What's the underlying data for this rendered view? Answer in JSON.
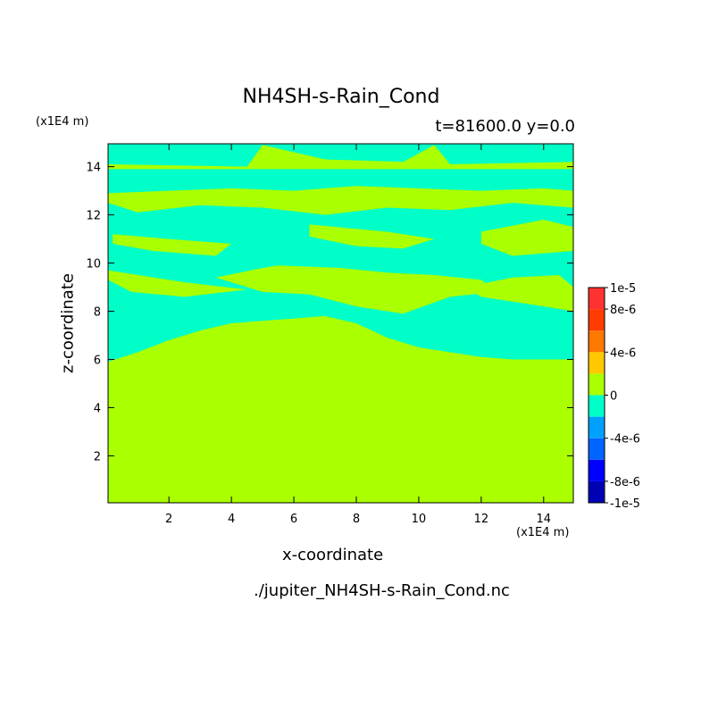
{
  "chart_data": {
    "type": "heatmap",
    "title": "NH4SH-s-Rain_Cond",
    "subtitle": "t=81600.0 y=0.0",
    "xlabel": "x-coordinate",
    "ylabel": "z-coordinate",
    "x_unit": "(x1E4 m)",
    "y_unit": "(x1E4 m)",
    "source_file": "./jupiter_NH4SH-s-Rain_Cond.nc",
    "xlim": [
      0.05,
      14.95
    ],
    "ylim": [
      0.05,
      14.95
    ],
    "x_ticks": [
      2,
      4,
      6,
      8,
      10,
      12,
      14
    ],
    "y_ticks": [
      2,
      4,
      6,
      8,
      10,
      12,
      14
    ],
    "colorbar": {
      "levels": [
        -1e-05,
        -8e-06,
        -6e-06,
        -4e-06,
        -2e-06,
        0,
        2e-06,
        4e-06,
        6e-06,
        8e-06,
        1e-05
      ],
      "tick_labels": [
        "1e-5",
        "8e-6",
        "4e-6",
        "0",
        "-4e-6",
        "-8e-6",
        "-1e-5"
      ],
      "colors": [
        "#0000b4",
        "#0000ff",
        "#0064ff",
        "#00a0ff",
        "#00ffc8",
        "#aaff00",
        "#ffc800",
        "#ff7800",
        "#ff3c00",
        "#ff3232"
      ]
    },
    "fill_colors": {
      "zero_to_2e-6": "#aaff00",
      "minus_2e-6_to_0": "#00ffc8"
    },
    "negative_band_profile": [
      {
        "x": 0.05,
        "z_bottom": 5.9
      },
      {
        "x": 1.0,
        "z_bottom": 6.3
      },
      {
        "x": 2.0,
        "z_bottom": 6.8
      },
      {
        "x": 3.0,
        "z_bottom": 7.2
      },
      {
        "x": 4.0,
        "z_bottom": 7.5
      },
      {
        "x": 5.0,
        "z_bottom": 7.6
      },
      {
        "x": 6.0,
        "z_bottom": 7.7
      },
      {
        "x": 7.0,
        "z_bottom": 7.8
      },
      {
        "x": 8.0,
        "z_bottom": 7.5
      },
      {
        "x": 9.0,
        "z_bottom": 6.9
      },
      {
        "x": 10.0,
        "z_bottom": 6.5
      },
      {
        "x": 11.0,
        "z_bottom": 6.3
      },
      {
        "x": 12.0,
        "z_bottom": 6.1
      },
      {
        "x": 13.0,
        "z_bottom": 6.0
      },
      {
        "x": 14.0,
        "z_bottom": 6.0
      },
      {
        "x": 14.95,
        "z_bottom": 6.0
      }
    ],
    "positive_regions": [
      {
        "x": [
          5.5,
          7.5,
          9.0,
          10.5,
          12.0,
          12.5,
          11.0,
          9.5,
          8.0,
          6.5,
          5.0,
          3.5,
          5.0
        ],
        "z": [
          9.9,
          9.8,
          9.6,
          9.5,
          9.3,
          8.8,
          8.6,
          7.9,
          8.2,
          8.7,
          8.8,
          9.4,
          9.8
        ]
      },
      {
        "x": [
          0.05,
          2.5,
          4.5,
          2.5,
          0.8,
          0.05
        ],
        "z": [
          9.7,
          9.2,
          8.9,
          8.6,
          8.8,
          9.3
        ]
      },
      {
        "x": [
          0.05,
          2.0,
          4.0,
          6.0,
          8.0,
          10.0,
          12.0,
          14.0,
          14.95,
          14.95,
          13.0,
          11.0,
          9.0,
          7.0,
          5.0,
          3.0,
          1.0,
          0.05
        ],
        "z": [
          12.9,
          13.0,
          13.1,
          13.0,
          13.2,
          13.1,
          13.0,
          13.1,
          13.0,
          12.3,
          12.5,
          12.2,
          12.3,
          12.0,
          12.3,
          12.4,
          12.1,
          12.5
        ]
      },
      {
        "x": [
          0.05,
          4.5,
          5.0,
          7.0,
          9.5,
          10.5,
          11.0,
          14.95,
          14.95,
          0.05
        ],
        "z": [
          14.1,
          14.0,
          14.9,
          14.3,
          14.2,
          14.9,
          14.1,
          14.2,
          13.9,
          13.9
        ]
      },
      {
        "x": [
          0.2,
          2.0,
          4.0,
          3.5,
          1.5,
          0.2
        ],
        "z": [
          11.2,
          11.0,
          10.8,
          10.3,
          10.5,
          10.8
        ]
      },
      {
        "x": [
          6.5,
          9.0,
          10.5,
          9.5,
          8.0,
          6.5
        ],
        "z": [
          11.6,
          11.3,
          11.0,
          10.6,
          10.7,
          11.1
        ]
      },
      {
        "x": [
          12.0,
          14.0,
          14.95,
          14.95,
          13.0,
          12.0
        ],
        "z": [
          11.3,
          11.8,
          11.5,
          10.5,
          10.3,
          10.8
        ]
      },
      {
        "x": [
          11.5,
          13.0,
          14.5,
          14.95,
          14.95,
          13.5,
          12.0
        ],
        "z": [
          9.0,
          9.4,
          9.5,
          9.0,
          8.0,
          8.3,
          8.6
        ]
      }
    ]
  }
}
